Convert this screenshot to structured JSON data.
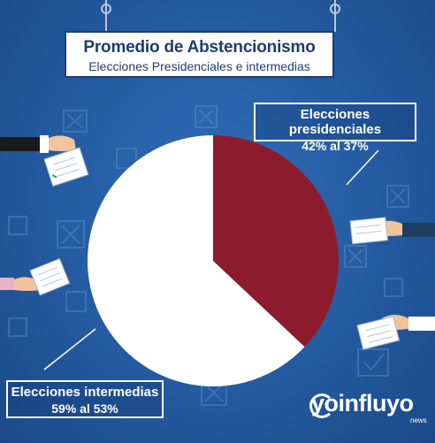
{
  "title": "Promedio de Abstencionismo",
  "subtitle": "Elecciones Presidenciales e intermedias",
  "chart_data": {
    "type": "pie",
    "slices": [
      {
        "label": "Elecciones presidenciales",
        "range_text": "42% al 37%",
        "value": 37,
        "color": "#8c1c2b"
      },
      {
        "label": "Elecciones intermedias",
        "range_text": "59% al 53%",
        "value": 63,
        "color": "#ffffff"
      }
    ]
  },
  "labels": {
    "presidential": {
      "title": "Elecciones presidenciales",
      "value": "42% al 37%"
    },
    "midterm": {
      "title": "Elecciones intermedias",
      "value": "59% al 53%"
    }
  },
  "logo": {
    "brand": "yoinfluyo",
    "sub": "news"
  },
  "colors": {
    "background": "#245aa0",
    "accent": "#8c1c2b",
    "title_text": "#1f3d6e"
  },
  "icons": [
    "hand-with-ballot-icon",
    "ballot-checkbox-icon"
  ]
}
